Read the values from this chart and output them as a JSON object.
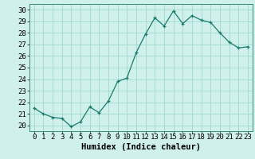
{
  "x": [
    0,
    1,
    2,
    3,
    4,
    5,
    6,
    7,
    8,
    9,
    10,
    11,
    12,
    13,
    14,
    15,
    16,
    17,
    18,
    19,
    20,
    21,
    22,
    23
  ],
  "y": [
    21.5,
    21.0,
    20.7,
    20.6,
    19.9,
    20.3,
    21.6,
    21.1,
    22.1,
    23.8,
    24.1,
    26.3,
    27.9,
    29.3,
    28.6,
    29.9,
    28.8,
    29.5,
    29.1,
    28.9,
    28.0,
    27.2,
    26.7,
    26.8
  ],
  "bg_color": "#cff0eb",
  "line_color": "#1a7a6e",
  "marker_color": "#1a7a6e",
  "grid_color": "#9fd8d0",
  "xlabel": "Humidex (Indice chaleur)",
  "xlim": [
    -0.5,
    23.5
  ],
  "ylim": [
    19.5,
    30.5
  ],
  "yticks": [
    20,
    21,
    22,
    23,
    24,
    25,
    26,
    27,
    28,
    29,
    30
  ],
  "xticks": [
    0,
    1,
    2,
    3,
    4,
    5,
    6,
    7,
    8,
    9,
    10,
    11,
    12,
    13,
    14,
    15,
    16,
    17,
    18,
    19,
    20,
    21,
    22,
    23
  ],
  "tick_fontsize": 6.5,
  "label_fontsize": 7.5
}
